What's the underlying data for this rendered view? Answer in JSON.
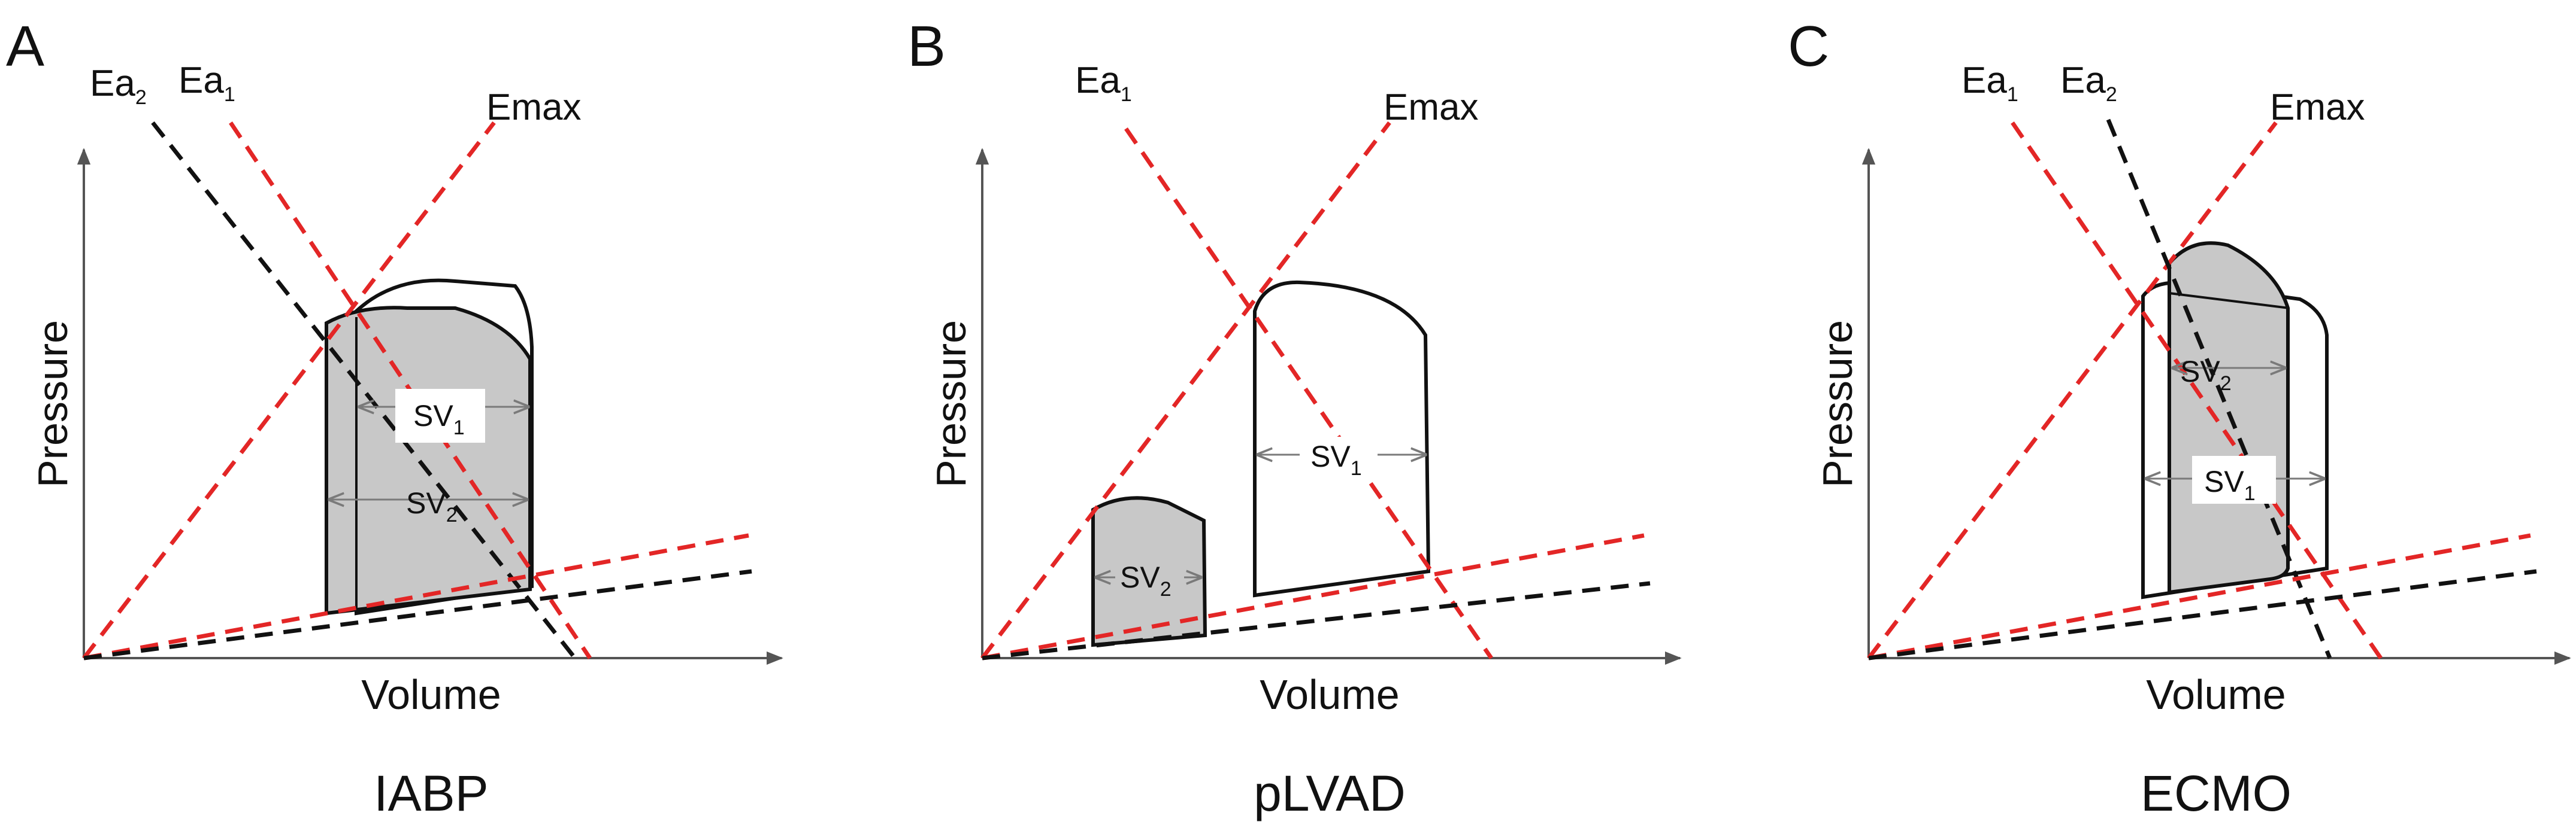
{
  "colors": {
    "red": "#e32626",
    "black": "#111111",
    "gray_fill": "#c8c8c8",
    "arrow_gray": "#7a7a7a"
  },
  "panels": [
    {
      "id": "A",
      "letter": "A",
      "device": "IABP",
      "xlabel": "Volume",
      "ylabel": "Pressure",
      "emax": "Emax",
      "ea_labels": [
        {
          "main": "Ea",
          "sub": "2",
          "color": "black"
        },
        {
          "main": "Ea",
          "sub": "1",
          "color": "red"
        }
      ],
      "sv_labels": [
        {
          "main": "SV",
          "sub": "1"
        },
        {
          "main": "SV",
          "sub": "2"
        }
      ]
    },
    {
      "id": "B",
      "letter": "B",
      "device": "pLVAD",
      "xlabel": "Volume",
      "ylabel": "Pressure",
      "emax": "Emax",
      "ea_labels": [
        {
          "main": "Ea",
          "sub": "1",
          "color": "red"
        }
      ],
      "sv_labels": [
        {
          "main": "SV",
          "sub": "1"
        },
        {
          "main": "SV",
          "sub": "2"
        }
      ]
    },
    {
      "id": "C",
      "letter": "C",
      "device": "ECMO",
      "xlabel": "Volume",
      "ylabel": "Pressure",
      "emax": "Emax",
      "ea_labels": [
        {
          "main": "Ea",
          "sub": "1",
          "color": "red"
        },
        {
          "main": "Ea",
          "sub": "2",
          "color": "black"
        }
      ],
      "sv_labels": [
        {
          "main": "SV",
          "sub": "2"
        },
        {
          "main": "SV",
          "sub": "1"
        }
      ]
    }
  ]
}
